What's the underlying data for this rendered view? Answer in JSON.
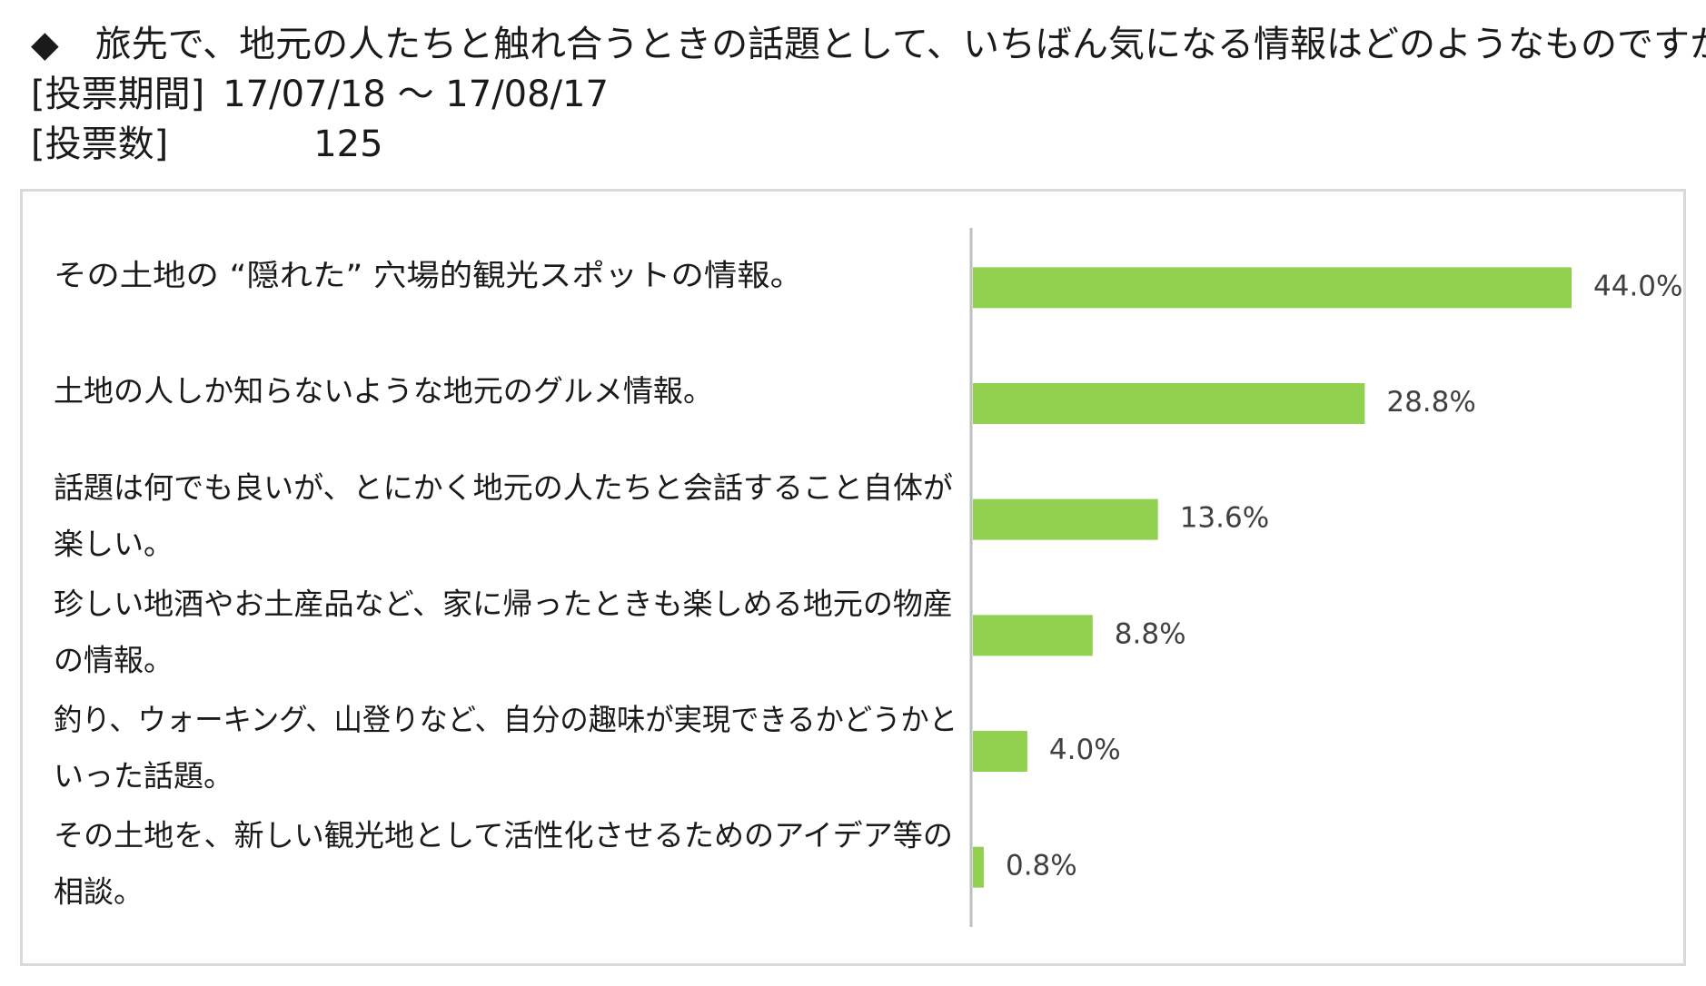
{
  "header": {
    "question": "◆　旅先で、地元の人たちと触れ合うときの話題として、いちばん気になる情報はどのようなものですか？",
    "period_label": "[投票期間]",
    "period_value": "17/07/18 ～ 17/08/17",
    "count_label": "[投票数]",
    "count_value": "125"
  },
  "chart_data": {
    "type": "bar",
    "orientation": "horizontal",
    "categories": [
      "その土地の “隠れた” 穴場的観光スポットの情報。",
      "土地の人しか知らないような地元のグルメ情報。",
      "話題は何でも良いが、とにかく地元の人たちと会話すること自体が楽しい。",
      "珍しい地酒やお土産品など、家に帰ったときも楽しめる地元の物産の情報。",
      "釣り、ウォーキング、山登りなど、自分の趣味が実現できるかどうかといった話題。",
      "その土地を、新しい観光地として活性化させるためのアイデア等の相談。"
    ],
    "category_lines": [
      [
        "その土地の “隠れた” 穴場的観光スポットの情報。"
      ],
      [
        "土地の人しか知らないような地元のグルメ情報。"
      ],
      [
        "話題は何でも良いが、とにかく地元の人たちと会話すること自体が",
        "楽しい。"
      ],
      [
        "珍しい地酒やお土産品など、家に帰ったときも楽しめる地元の物産",
        "の情報。"
      ],
      [
        "釣り、ウォーキング、山登りなど、自分の趣味が実現できるかどうかと",
        "いった話題。"
      ],
      [
        "その土地を、新しい観光地として活性化させるためのアイデア等の",
        "相談。"
      ]
    ],
    "values": [
      44.0,
      28.8,
      13.6,
      8.8,
      4.0,
      0.8
    ],
    "value_labels": [
      "44.0%",
      "28.8%",
      "13.6%",
      "8.8%",
      "4.0%",
      "0.8%"
    ],
    "unit": "%",
    "xlim": [
      0,
      44.0
    ],
    "grid": false,
    "legend": "none",
    "bar_color": "#92d050",
    "axis_color": "#bfbfbf"
  }
}
